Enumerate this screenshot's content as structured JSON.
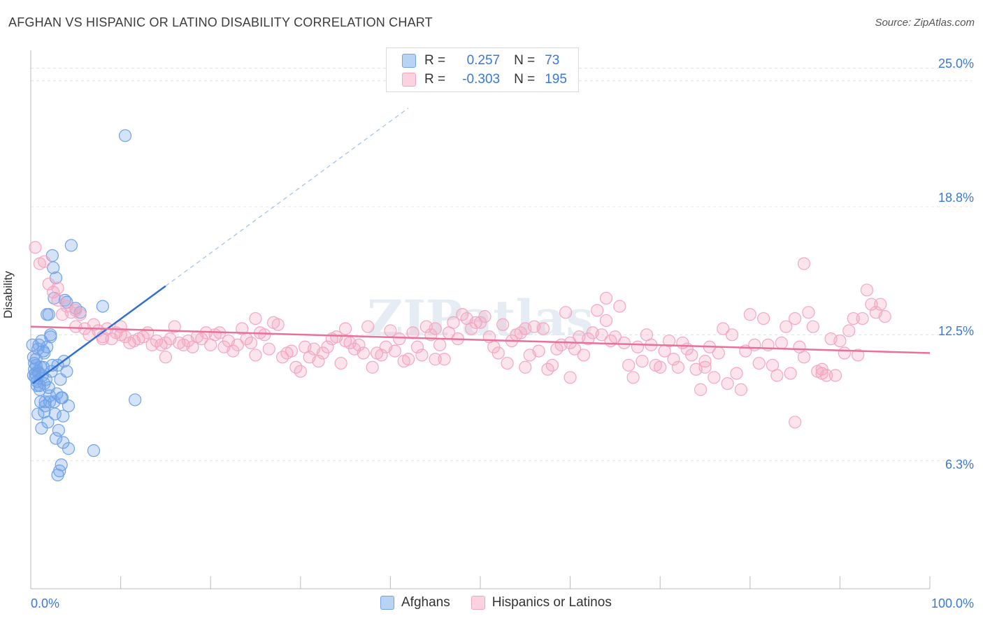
{
  "title": "AFGHAN VS HISPANIC OR LATINO DISABILITY CORRELATION CHART",
  "source": "Source: ZipAtlas.com",
  "legend": {
    "afghan": {
      "r_label": "R =",
      "r_value": "0.257",
      "n_label": "N =",
      "n_value": "73"
    },
    "hispanic": {
      "r_label": "R =",
      "r_value": "-0.303",
      "n_label": "N =",
      "n_value": "195"
    }
  },
  "colors": {
    "afghan": "#6fa3e8",
    "afghan_line": "#2f6fd3",
    "hispanic": "#f3a7c0",
    "hispanic_line": "#e8709a",
    "axis_text": "#3a78d8"
  },
  "chart_data": {
    "type": "scatter",
    "ylabel": "Disability",
    "xlim": [
      0,
      100
    ],
    "ylim": [
      0,
      26.5
    ],
    "x_tick_labels": [
      "0.0%",
      "100.0%"
    ],
    "y_ticks": [
      6.3,
      12.5,
      18.8,
      25.0
    ],
    "y_tick_labels": [
      "6.3%",
      "12.5%",
      "18.8%",
      "25.0%"
    ],
    "grid": true,
    "series": [
      {
        "name": "Afghans",
        "trend": {
          "x0": 0.2,
          "y0": 10.1,
          "x1": 15.0,
          "y1": 14.9,
          "dash_to_x": 42.0
        },
        "points": [
          [
            0.2,
            12.0
          ],
          [
            0.3,
            11.4
          ],
          [
            0.4,
            10.8
          ],
          [
            0.5,
            10.4
          ],
          [
            0.6,
            11.0
          ],
          [
            0.7,
            10.2
          ],
          [
            0.8,
            11.8
          ],
          [
            0.9,
            10.6
          ],
          [
            1.0,
            10.0
          ],
          [
            1.1,
            9.2
          ],
          [
            1.2,
            12.2
          ],
          [
            1.3,
            10.5
          ],
          [
            1.4,
            10.9
          ],
          [
            1.5,
            11.6
          ],
          [
            1.6,
            9.0
          ],
          [
            1.7,
            10.3
          ],
          [
            1.8,
            11.9
          ],
          [
            1.9,
            8.2
          ],
          [
            2.0,
            13.5
          ],
          [
            2.1,
            9.2
          ],
          [
            2.2,
            12.4
          ],
          [
            2.3,
            10.7
          ],
          [
            2.4,
            16.4
          ],
          [
            2.5,
            15.8
          ],
          [
            2.6,
            14.3
          ],
          [
            2.7,
            8.6
          ],
          [
            2.8,
            15.3
          ],
          [
            2.9,
            9.6
          ],
          [
            3.0,
            11.0
          ],
          [
            3.1,
            7.8
          ],
          [
            3.2,
            5.8
          ],
          [
            3.3,
            10.3
          ],
          [
            3.4,
            6.1
          ],
          [
            3.5,
            9.4
          ],
          [
            3.6,
            8.5
          ],
          [
            3.7,
            11.2
          ],
          [
            4.0,
            10.7
          ],
          [
            4.2,
            9.0
          ],
          [
            4.5,
            16.9
          ],
          [
            5.0,
            13.8
          ],
          [
            5.5,
            13.6
          ],
          [
            7.0,
            6.8
          ],
          [
            8.0,
            13.9
          ],
          [
            10.5,
            22.3
          ],
          [
            11.6,
            9.3
          ],
          [
            1.0,
            9.8
          ],
          [
            1.5,
            8.7
          ],
          [
            2.0,
            9.9
          ],
          [
            0.8,
            8.6
          ],
          [
            1.2,
            7.9
          ],
          [
            3.6,
            7.2
          ],
          [
            2.8,
            7.4
          ],
          [
            4.2,
            6.9
          ],
          [
            3.0,
            5.6
          ],
          [
            0.6,
            11.3
          ],
          [
            1.8,
            13.5
          ],
          [
            2.2,
            12.5
          ],
          [
            0.9,
            12.0
          ],
          [
            1.4,
            11.7
          ],
          [
            0.4,
            11.1
          ],
          [
            0.7,
            10.0
          ],
          [
            1.6,
            9.2
          ],
          [
            2.6,
            9.2
          ],
          [
            3.4,
            9.4
          ],
          [
            0.5,
            10.6
          ],
          [
            1.1,
            10.9
          ],
          [
            2.4,
            11.0
          ],
          [
            4.0,
            14.1
          ],
          [
            3.8,
            14.2
          ],
          [
            0.3,
            10.5
          ],
          [
            0.8,
            10.7
          ],
          [
            1.5,
            10.1
          ],
          [
            2.1,
            9.5
          ]
        ]
      },
      {
        "name": "Hispanics or Latinos",
        "trend": {
          "x0": 0.0,
          "y0": 12.9,
          "x1": 100.0,
          "y1": 11.6
        },
        "points": [
          [
            0.5,
            16.8
          ],
          [
            1.0,
            16.0
          ],
          [
            1.5,
            16.1
          ],
          [
            2.0,
            15.0
          ],
          [
            2.5,
            14.6
          ],
          [
            3.0,
            14.2
          ],
          [
            3.5,
            13.5
          ],
          [
            4.0,
            13.9
          ],
          [
            4.5,
            13.6
          ],
          [
            5.0,
            13.7
          ],
          [
            5.5,
            13.5
          ],
          [
            6.0,
            12.8
          ],
          [
            6.5,
            12.5
          ],
          [
            7.0,
            13.0
          ],
          [
            7.5,
            12.7
          ],
          [
            8.0,
            12.4
          ],
          [
            8.5,
            12.8
          ],
          [
            9.0,
            12.3
          ],
          [
            9.5,
            12.6
          ],
          [
            10.0,
            12.5
          ],
          [
            10.5,
            12.4
          ],
          [
            11.0,
            12.1
          ],
          [
            11.5,
            12.2
          ],
          [
            12.0,
            12.3
          ],
          [
            12.5,
            12.4
          ],
          [
            13.0,
            12.6
          ],
          [
            13.5,
            12.0
          ],
          [
            14.0,
            12.2
          ],
          [
            14.5,
            12.0
          ],
          [
            15.0,
            11.4
          ],
          [
            15.5,
            12.3
          ],
          [
            16.0,
            12.9
          ],
          [
            16.5,
            12.1
          ],
          [
            17.0,
            12.0
          ],
          [
            17.5,
            12.2
          ],
          [
            18.0,
            11.9
          ],
          [
            18.5,
            12.4
          ],
          [
            19.0,
            12.3
          ],
          [
            19.5,
            12.6
          ],
          [
            20.0,
            12.0
          ],
          [
            20.5,
            12.5
          ],
          [
            21.0,
            12.6
          ],
          [
            21.5,
            11.9
          ],
          [
            22.0,
            12.2
          ],
          [
            22.5,
            11.7
          ],
          [
            23.0,
            12.0
          ],
          [
            23.5,
            12.8
          ],
          [
            24.0,
            12.3
          ],
          [
            24.5,
            12.1
          ],
          [
            25.0,
            13.3
          ],
          [
            25.5,
            12.6
          ],
          [
            26.0,
            12.5
          ],
          [
            26.5,
            11.8
          ],
          [
            27.0,
            13.1
          ],
          [
            27.5,
            13.0
          ],
          [
            28.0,
            11.4
          ],
          [
            28.5,
            11.6
          ],
          [
            29.0,
            11.7
          ],
          [
            29.5,
            10.9
          ],
          [
            30.0,
            10.7
          ],
          [
            30.5,
            11.9
          ],
          [
            31.0,
            11.4
          ],
          [
            31.5,
            11.8
          ],
          [
            32.0,
            11.2
          ],
          [
            32.5,
            11.6
          ],
          [
            33.0,
            11.9
          ],
          [
            33.5,
            12.3
          ],
          [
            34.0,
            12.4
          ],
          [
            34.5,
            11.1
          ],
          [
            35.0,
            12.8
          ],
          [
            35.5,
            12.1
          ],
          [
            36.0,
            11.8
          ],
          [
            36.5,
            12.0
          ],
          [
            37.0,
            11.6
          ],
          [
            37.5,
            12.9
          ],
          [
            38.0,
            10.9
          ],
          [
            38.5,
            11.6
          ],
          [
            39.0,
            11.5
          ],
          [
            39.5,
            11.9
          ],
          [
            40.0,
            12.7
          ],
          [
            40.5,
            11.7
          ],
          [
            41.0,
            12.3
          ],
          [
            41.5,
            11.2
          ],
          [
            42.0,
            11.3
          ],
          [
            42.5,
            12.6
          ],
          [
            43.0,
            11.9
          ],
          [
            43.5,
            11.5
          ],
          [
            44.0,
            12.9
          ],
          [
            44.5,
            12.5
          ],
          [
            45.0,
            12.8
          ],
          [
            45.5,
            12.0
          ],
          [
            46.0,
            11.3
          ],
          [
            46.5,
            12.6
          ],
          [
            47.0,
            13.1
          ],
          [
            47.5,
            12.3
          ],
          [
            48.0,
            13.5
          ],
          [
            48.5,
            13.3
          ],
          [
            49.0,
            12.8
          ],
          [
            49.5,
            13.1
          ],
          [
            50.0,
            13.1
          ],
          [
            50.5,
            13.4
          ],
          [
            51.0,
            12.4
          ],
          [
            51.5,
            11.9
          ],
          [
            52.0,
            11.6
          ],
          [
            52.5,
            13.0
          ],
          [
            53.0,
            11.1
          ],
          [
            53.5,
            12.2
          ],
          [
            54.0,
            12.5
          ],
          [
            54.5,
            12.6
          ],
          [
            55.0,
            10.9
          ],
          [
            55.5,
            11.5
          ],
          [
            56.0,
            12.9
          ],
          [
            56.5,
            11.7
          ],
          [
            57.0,
            12.8
          ],
          [
            57.5,
            10.8
          ],
          [
            58.0,
            11.0
          ],
          [
            58.5,
            11.8
          ],
          [
            59.0,
            12.0
          ],
          [
            59.5,
            13.6
          ],
          [
            60.0,
            12.1
          ],
          [
            60.5,
            11.8
          ],
          [
            61.0,
            12.4
          ],
          [
            61.5,
            11.5
          ],
          [
            62.0,
            12.3
          ],
          [
            62.5,
            12.6
          ],
          [
            63.0,
            13.7
          ],
          [
            63.5,
            12.5
          ],
          [
            64.0,
            14.3
          ],
          [
            64.5,
            12.2
          ],
          [
            65.0,
            12.4
          ],
          [
            65.5,
            13.9
          ],
          [
            66.0,
            12.1
          ],
          [
            66.5,
            11.0
          ],
          [
            67.0,
            10.4
          ],
          [
            67.5,
            11.9
          ],
          [
            68.0,
            11.2
          ],
          [
            68.5,
            12.5
          ],
          [
            69.0,
            12.0
          ],
          [
            69.5,
            11.0
          ],
          [
            70.0,
            10.9
          ],
          [
            70.5,
            11.7
          ],
          [
            71.0,
            12.2
          ],
          [
            71.5,
            11.3
          ],
          [
            72.0,
            10.9
          ],
          [
            72.5,
            12.1
          ],
          [
            73.0,
            11.8
          ],
          [
            73.5,
            11.5
          ],
          [
            74.0,
            10.8
          ],
          [
            74.5,
            9.8
          ],
          [
            75.0,
            11.2
          ],
          [
            75.5,
            11.9
          ],
          [
            76.0,
            10.4
          ],
          [
            76.5,
            11.6
          ],
          [
            77.0,
            12.8
          ],
          [
            77.5,
            10.1
          ],
          [
            78.0,
            12.5
          ],
          [
            78.5,
            10.6
          ],
          [
            79.0,
            9.8
          ],
          [
            79.5,
            11.7
          ],
          [
            80.0,
            13.5
          ],
          [
            80.5,
            12.0
          ],
          [
            81.0,
            11.1
          ],
          [
            81.5,
            13.3
          ],
          [
            82.0,
            12.0
          ],
          [
            82.5,
            11.0
          ],
          [
            83.0,
            10.5
          ],
          [
            83.5,
            12.1
          ],
          [
            84.0,
            12.9
          ],
          [
            84.5,
            10.6
          ],
          [
            85.0,
            13.3
          ],
          [
            85.5,
            11.9
          ],
          [
            86.0,
            11.4
          ],
          [
            86.5,
            13.6
          ],
          [
            87.0,
            12.9
          ],
          [
            87.5,
            10.7
          ],
          [
            88.0,
            10.8
          ],
          [
            88.5,
            10.5
          ],
          [
            89.0,
            12.3
          ],
          [
            89.5,
            10.5
          ],
          [
            90.0,
            12.2
          ],
          [
            90.5,
            11.6
          ],
          [
            91.0,
            12.7
          ],
          [
            91.5,
            13.3
          ],
          [
            92.0,
            11.5
          ],
          [
            92.5,
            13.3
          ],
          [
            93.0,
            14.7
          ],
          [
            93.5,
            14.0
          ],
          [
            94.0,
            13.6
          ],
          [
            94.5,
            14.0
          ],
          [
            95.0,
            13.4
          ],
          [
            86.0,
            16.0
          ],
          [
            85.0,
            8.2
          ],
          [
            88.0,
            10.6
          ],
          [
            75.0,
            10.9
          ],
          [
            60.0,
            10.4
          ],
          [
            64.0,
            13.2
          ],
          [
            55.0,
            12.8
          ],
          [
            45.0,
            11.3
          ],
          [
            35.0,
            12.2
          ],
          [
            25.0,
            11.5
          ],
          [
            15.0,
            12.1
          ],
          [
            5.0,
            12.9
          ],
          [
            3.0,
            14.8
          ],
          [
            8.0,
            12.3
          ],
          [
            10.0,
            12.9
          ]
        ]
      }
    ]
  },
  "watermark": "ZIPatlas"
}
